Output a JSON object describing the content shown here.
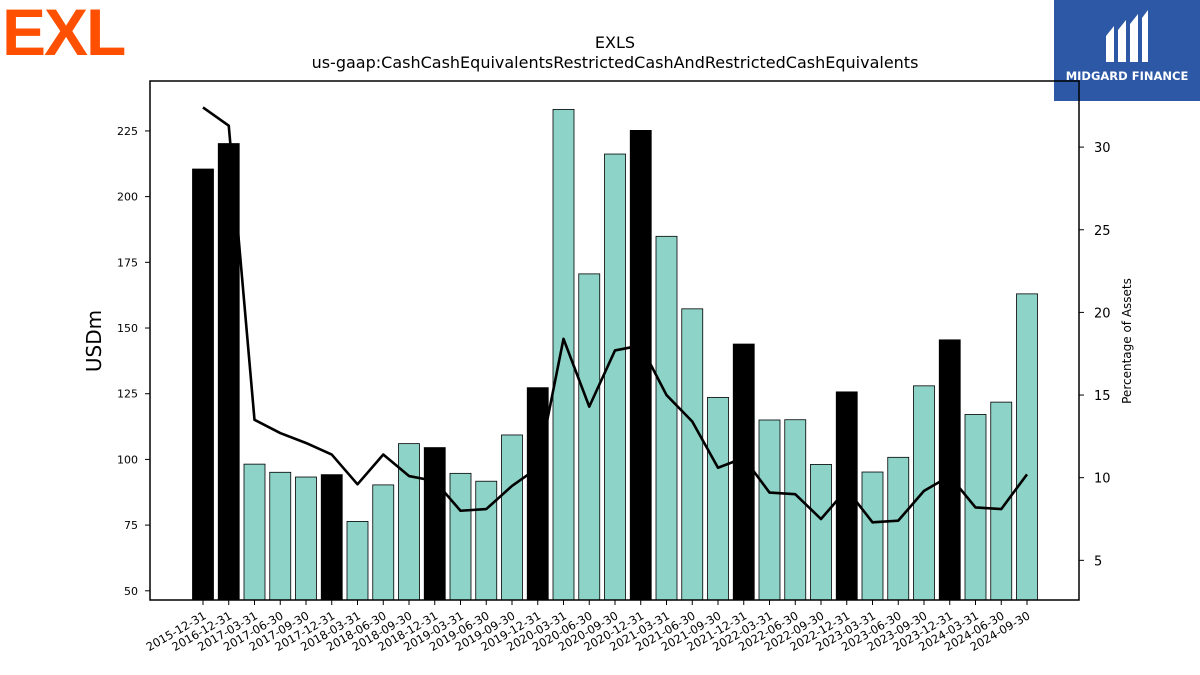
{
  "logos": {
    "left": "EXL",
    "right": "MIDGARD FINANCE"
  },
  "colors": {
    "bar_default": "#8ed3c7",
    "bar_highlight": "#000000",
    "line": "#000000",
    "left_logo": "#fe5000",
    "right_logo_bg": "#2c58a6"
  },
  "chart_data": {
    "type": "bar",
    "title": "EXLS",
    "subtitle": "us-gaap:CashCashEquivalentsRestrictedCashAndRestrictedCashEquivalents",
    "ylabel": "USDm",
    "y2label": "Percentage of Assets",
    "ylim": [
      46.5,
      244
    ],
    "y2lim": [
      2.6,
      34.0
    ],
    "yticks": [
      50,
      75,
      100,
      125,
      150,
      175,
      200,
      225
    ],
    "y2ticks": [
      5,
      10,
      15,
      20,
      25,
      30
    ],
    "grid": false,
    "categories": [
      "2015-12-31",
      "2016-12-31",
      "2017-03-31",
      "2017-06-30",
      "2017-09-30",
      "2017-12-31",
      "2018-03-31",
      "2018-06-30",
      "2018-09-30",
      "2018-12-31",
      "2019-03-31",
      "2019-06-30",
      "2019-09-30",
      "2019-12-31",
      "2020-03-31",
      "2020-06-30",
      "2020-09-30",
      "2020-12-31",
      "2021-03-31",
      "2021-06-30",
      "2021-09-30",
      "2021-12-31",
      "2022-03-31",
      "2022-06-30",
      "2022-09-30",
      "2022-12-31",
      "2023-03-31",
      "2023-06-30",
      "2023-09-30",
      "2023-12-31",
      "2024-03-31",
      "2024-06-30",
      "2024-09-30"
    ],
    "series": [
      {
        "axis": "left",
        "kind": "bar",
        "values": [
          210.5,
          220.2,
          98.2,
          95.1,
          93.3,
          94.2,
          76.4,
          90.3,
          106.0,
          104.5,
          94.7,
          91.7,
          109.3,
          127.3,
          233.2,
          170.6,
          216.2,
          225.2,
          184.9,
          157.3,
          123.6,
          143.9,
          115.0,
          115.1,
          98.1,
          125.7,
          95.2,
          100.8,
          128.0,
          145.5,
          117.1,
          121.8,
          163.0
        ],
        "highlight": [
          true,
          true,
          false,
          false,
          false,
          true,
          false,
          false,
          false,
          true,
          false,
          false,
          false,
          true,
          false,
          false,
          false,
          true,
          false,
          false,
          false,
          true,
          false,
          false,
          false,
          true,
          false,
          false,
          false,
          true,
          false,
          false,
          false
        ]
      },
      {
        "axis": "right",
        "kind": "line",
        "values": [
          32.4,
          31.3,
          13.5,
          12.7,
          12.1,
          11.4,
          9.6,
          11.4,
          10.1,
          9.8,
          8.0,
          8.1,
          9.5,
          10.6,
          18.4,
          14.3,
          17.7,
          18.0,
          15.0,
          13.4,
          10.6,
          11.2,
          9.1,
          9.0,
          7.5,
          9.3,
          7.3,
          7.4,
          9.2,
          10.1,
          8.2,
          8.1,
          10.2
        ]
      }
    ]
  }
}
